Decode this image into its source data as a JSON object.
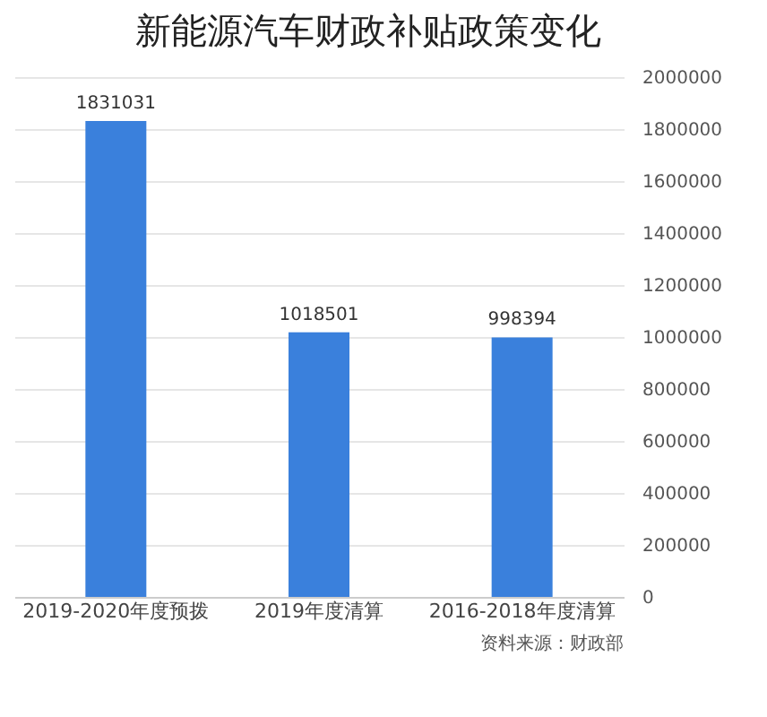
{
  "chart_data": {
    "type": "bar",
    "title": "新能源汽车财政补贴政策变化",
    "categories": [
      "2019-2020年度预拨",
      "2019年度清算",
      "2016-2018年度清算"
    ],
    "values": [
      1831031,
      1018501,
      998394
    ],
    "color": "#3a80dc",
    "ylim": [
      0,
      2000000
    ],
    "yticks": [
      0,
      200000,
      400000,
      600000,
      800000,
      1000000,
      1200000,
      1400000,
      1600000,
      1800000,
      2000000
    ],
    "grid": "y",
    "data_labels": true,
    "annotations": [
      "资料来源：财政部"
    ]
  }
}
